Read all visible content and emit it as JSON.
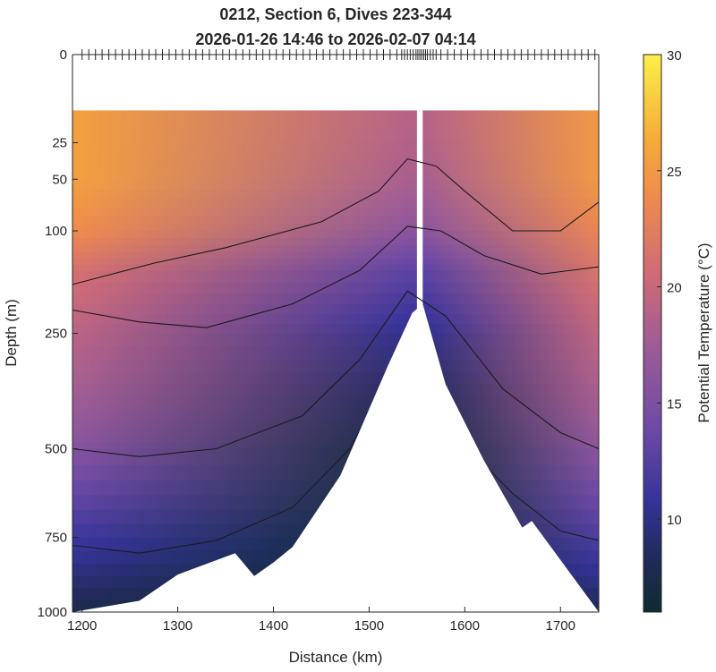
{
  "chart_data": {
    "type": "heatmap",
    "title": "0212, Section 6, Dives 223-344",
    "subtitle": "2026-01-26 14:46 to 2026-02-07 04:14",
    "xlabel": "Distance (km)",
    "ylabel": "Depth (m)",
    "colorbar_label": "Potential Temperature (°C)",
    "xlim": [
      1190,
      1740
    ],
    "ylim": [
      0,
      1000
    ],
    "y_scale": "sqrt",
    "x_ticks": [
      1200,
      1300,
      1400,
      1500,
      1600,
      1700
    ],
    "y_ticks": [
      0,
      25,
      50,
      100,
      250,
      500,
      750,
      1000
    ],
    "colorbar_range": [
      6,
      30
    ],
    "colorbar_ticks": [
      10,
      15,
      20,
      25,
      30
    ],
    "data_top_depth_m": 10,
    "gap_km": [
      1550,
      1556
    ],
    "temperature_at_x": [
      1200,
      1540,
      1560,
      1740
    ],
    "temperature_by_depth": [
      {
        "depth": 10,
        "temp_left": 25,
        "temp_ridge": 19,
        "temp_right": 24.5
      },
      {
        "depth": 50,
        "temp_left": 25,
        "temp_ridge": 18,
        "temp_right": 24.5
      },
      {
        "depth": 100,
        "temp_left": 23.5,
        "temp_ridge": 16,
        "temp_right": 23
      },
      {
        "depth": 150,
        "temp_left": 21,
        "temp_ridge": 13,
        "temp_right": 21.5
      },
      {
        "depth": 250,
        "temp_left": 19,
        "temp_ridge": 10,
        "temp_right": 19.5
      },
      {
        "depth": 400,
        "temp_left": 17,
        "temp_ridge": 8,
        "temp_right": 17.5
      },
      {
        "depth": 500,
        "temp_left": 15.5,
        "temp_ridge": 7,
        "temp_right": 16
      },
      {
        "depth": 750,
        "temp_left": 11,
        "temp_ridge": 6,
        "temp_right": 12
      },
      {
        "depth": 1000,
        "temp_left": 7.5,
        "temp_ridge": 6,
        "temp_right": 8
      }
    ],
    "contour_depths": [
      {
        "name": "contour-1",
        "x": [
          1190,
          1275,
          1350,
          1450,
          1510,
          1540,
          1570,
          1600,
          1650,
          1700,
          1740
        ],
        "depth": [
          170,
          140,
          120,
          90,
          60,
          35,
          40,
          60,
          100,
          100,
          70
        ]
      },
      {
        "name": "contour-2",
        "x": [
          1190,
          1260,
          1330,
          1420,
          1490,
          1540,
          1575,
          1620,
          1680,
          1740
        ],
        "depth": [
          210,
          230,
          240,
          200,
          150,
          95,
          100,
          130,
          155,
          145
        ]
      },
      {
        "name": "contour-3",
        "x": [
          1190,
          1260,
          1340,
          1430,
          1490,
          1540,
          1580,
          1640,
          1700,
          1740
        ],
        "depth": [
          500,
          520,
          500,
          420,
          300,
          180,
          220,
          360,
          460,
          500
        ]
      },
      {
        "name": "contour-4",
        "x": [
          1190,
          1260,
          1340,
          1420,
          1480,
          1530
        ],
        "depth": [
          775,
          800,
          760,
          660,
          500,
          300
        ]
      },
      {
        "name": "contour-5",
        "x": [
          1560,
          1600,
          1650,
          1700,
          1740
        ],
        "depth": [
          330,
          490,
          620,
          730,
          760
        ]
      }
    ],
    "bottom_depth": {
      "x": [
        1190,
        1260,
        1300,
        1360,
        1380,
        1400,
        1420,
        1470,
        1520,
        1545,
        1556,
        1580,
        1620,
        1660,
        1670,
        1740
      ],
      "depth": [
        1000,
        960,
        870,
        800,
        875,
        830,
        780,
        570,
        310,
        215,
        200,
        350,
        530,
        720,
        700,
        1000
      ]
    },
    "dive_markers_km": [
      1200,
      1207,
      1214,
      1221,
      1228,
      1235,
      1242,
      1249,
      1256,
      1263,
      1270,
      1277,
      1284,
      1291,
      1298,
      1305,
      1312,
      1319,
      1326,
      1333,
      1340,
      1347,
      1354,
      1361,
      1368,
      1375,
      1382,
      1389,
      1396,
      1403,
      1410,
      1417,
      1424,
      1431,
      1438,
      1445,
      1452,
      1459,
      1466,
      1473,
      1480,
      1487,
      1494,
      1501,
      1508,
      1515,
      1522,
      1529,
      1534,
      1537,
      1540,
      1543,
      1546,
      1549,
      1551,
      1553,
      1555,
      1557,
      1559,
      1561,
      1564,
      1567,
      1570,
      1575,
      1582,
      1589,
      1596,
      1603,
      1610,
      1617,
      1624,
      1631,
      1638,
      1645,
      1652,
      1659,
      1666,
      1673,
      1680,
      1687,
      1694,
      1701,
      1708,
      1715,
      1722,
      1729,
      1736
    ]
  }
}
